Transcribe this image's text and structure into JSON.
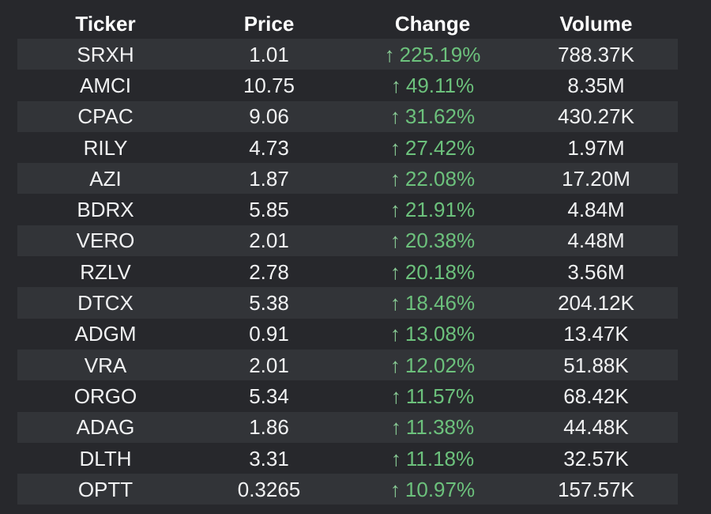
{
  "colors": {
    "background": "#27282c",
    "row_stripe": "#323438",
    "header_text": "#ffffff",
    "cell_text": "#f1f2f3",
    "positive_green": "#6cc17c",
    "arrow_green": "#8bcf97"
  },
  "table": {
    "headers": [
      "Ticker",
      "Price",
      "Change",
      "Volume"
    ],
    "up_arrow": "↑",
    "rows": [
      {
        "ticker": "SRXH",
        "price": "1.01",
        "change": "225.19%",
        "volume": "788.37K"
      },
      {
        "ticker": "AMCI",
        "price": "10.75",
        "change": "49.11%",
        "volume": "8.35M"
      },
      {
        "ticker": "CPAC",
        "price": "9.06",
        "change": "31.62%",
        "volume": "430.27K"
      },
      {
        "ticker": "RILY",
        "price": "4.73",
        "change": "27.42%",
        "volume": "1.97M"
      },
      {
        "ticker": "AZI",
        "price": "1.87",
        "change": "22.08%",
        "volume": "17.20M"
      },
      {
        "ticker": "BDRX",
        "price": "5.85",
        "change": "21.91%",
        "volume": "4.84M"
      },
      {
        "ticker": "VERO",
        "price": "2.01",
        "change": "20.38%",
        "volume": "4.48M"
      },
      {
        "ticker": "RZLV",
        "price": "2.78",
        "change": "20.18%",
        "volume": "3.56M"
      },
      {
        "ticker": "DTCX",
        "price": "5.38",
        "change": "18.46%",
        "volume": "204.12K"
      },
      {
        "ticker": "ADGM",
        "price": "0.91",
        "change": "13.08%",
        "volume": "13.47K"
      },
      {
        "ticker": "VRA",
        "price": "2.01",
        "change": "12.02%",
        "volume": "51.88K"
      },
      {
        "ticker": "ORGO",
        "price": "5.34",
        "change": "11.57%",
        "volume": "68.42K"
      },
      {
        "ticker": "ADAG",
        "price": "1.86",
        "change": "11.38%",
        "volume": "44.48K"
      },
      {
        "ticker": "DLTH",
        "price": "3.31",
        "change": "11.18%",
        "volume": "32.57K"
      },
      {
        "ticker": "OPTT",
        "price": "0.3265",
        "change": "10.97%",
        "volume": "157.57K"
      }
    ]
  }
}
